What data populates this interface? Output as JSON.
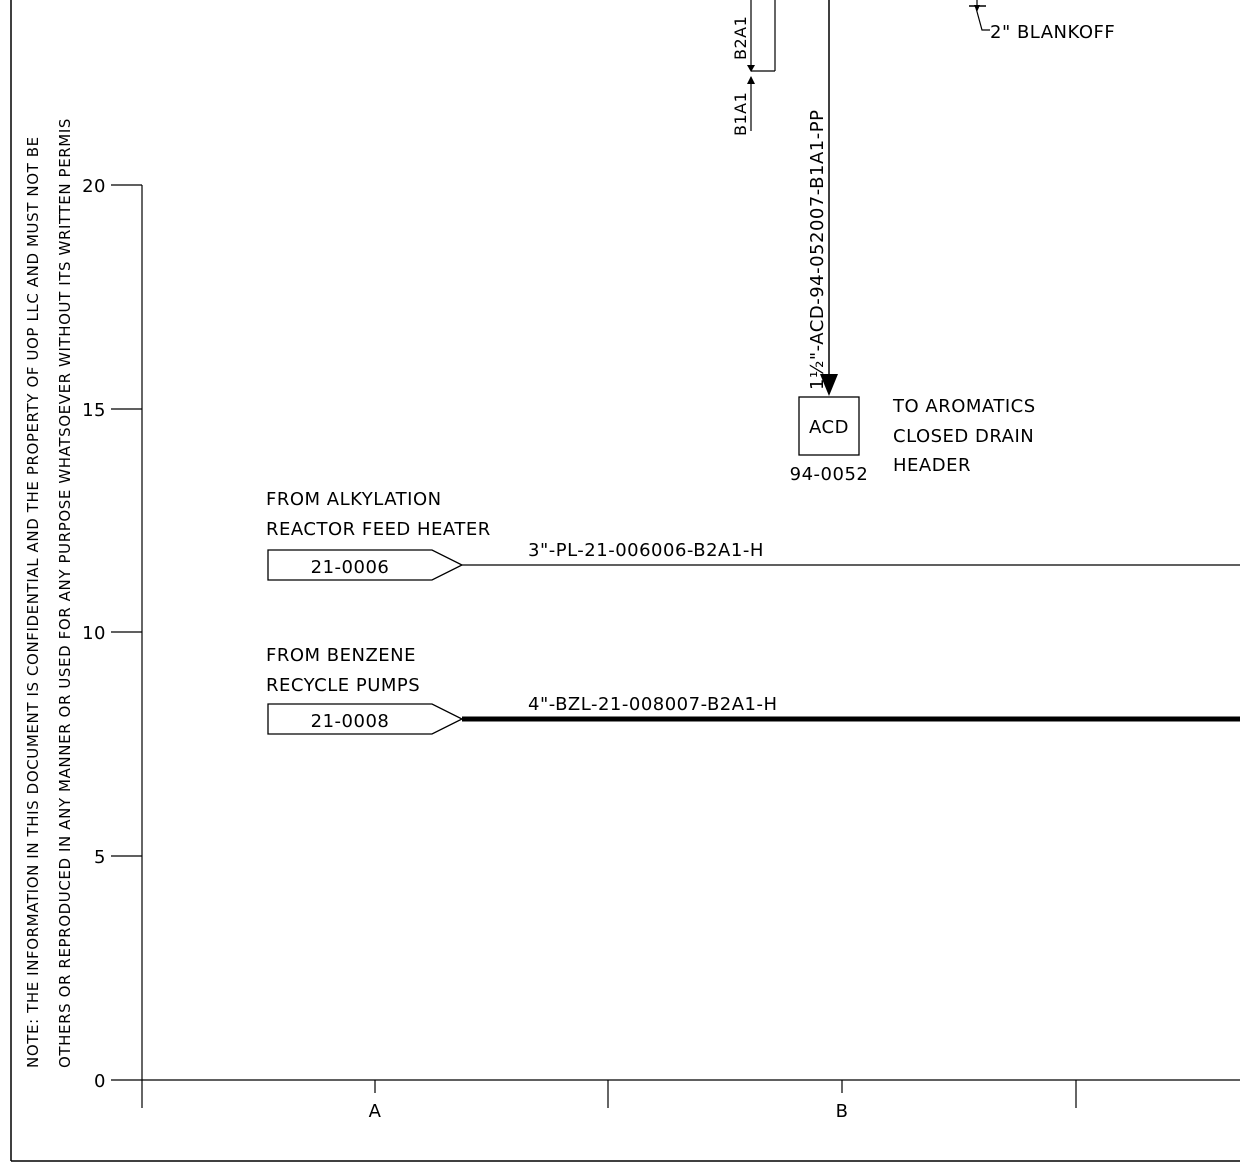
{
  "note": {
    "line1": "NOTE:  THE INFORMATION IN THIS DOCUMENT IS CONFIDENTIAL AND THE PROPERTY OF UOP LLC AND MUST NOT BE",
    "line2": "OTHERS OR REPRODUCED IN ANY MANNER OR USED FOR ANY PURPOSE WHATSOEVER WITHOUT ITS WRITTEN PERMIS"
  },
  "grid": {
    "rows": [
      "0",
      "5",
      "10",
      "15",
      "20"
    ],
    "columns": [
      "A",
      "B"
    ]
  },
  "blankoff": {
    "label": "2\" BLANKOFF"
  },
  "spec_break": {
    "left": "B1A1",
    "right": "B2A1"
  },
  "vertical_line": {
    "label": "1½\"-ACD-94-052007-B1A1-PP"
  },
  "acd": {
    "box": "ACD",
    "sheet_ref": "94-0052",
    "desc_line1": "TO AROMATICS",
    "desc_line2": "CLOSED DRAIN",
    "desc_line3": "HEADER"
  },
  "line_21_0006": {
    "from_line1": "FROM ALKYLATION",
    "from_line2": "REACTOR FEED HEATER",
    "ref": "21-0006",
    "line_label": "3\"-PL-21-006006-B2A1-H"
  },
  "line_21_0008": {
    "from_line1": "FROM BENZENE",
    "from_line2": "RECYCLE PUMPS",
    "ref": "21-0008",
    "line_label": "4\"-BZL-21-008007-B2A1-H"
  }
}
